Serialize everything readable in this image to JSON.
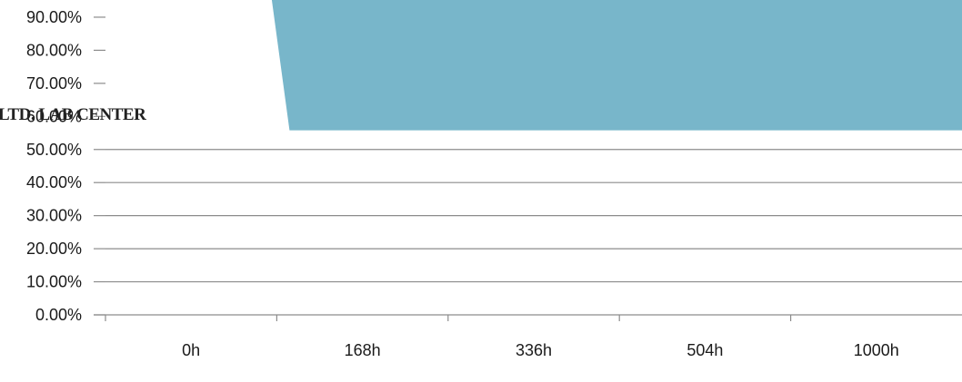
{
  "chart_data": {
    "type": "area",
    "x": [
      "0h",
      "168h",
      "336h",
      "504h",
      "1000h"
    ],
    "y_tick_labels": [
      "0.00%",
      "10.00%",
      "20.00%",
      "30.00%",
      "40.00%",
      "50.00%",
      "60.00%",
      "70.00%",
      "80.00%",
      "90.00%"
    ],
    "ylim": [
      0,
      100
    ],
    "y_tick_step": 10,
    "series": [
      {
        "values": [
          null,
          100,
          100,
          100,
          100
        ],
        "color": "#78b6ca"
      }
    ],
    "gridlines": true,
    "legend": "none"
  },
  "watermark_text": "LTD. LAB CENTER"
}
